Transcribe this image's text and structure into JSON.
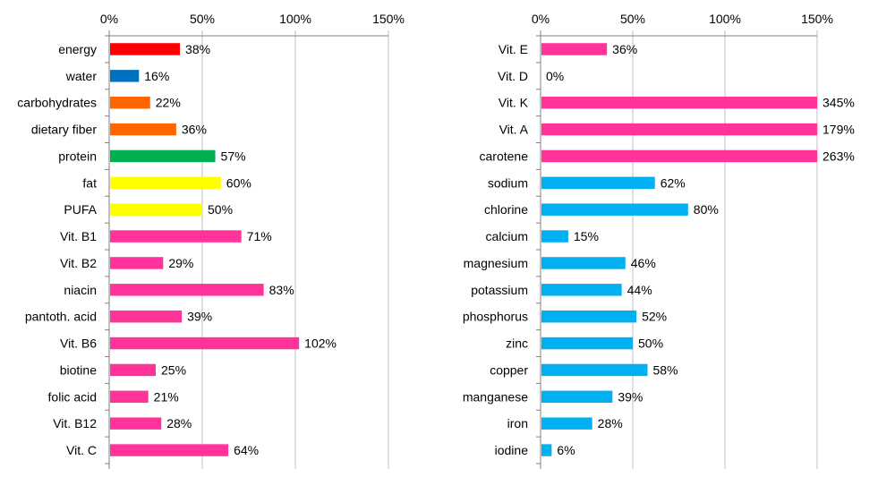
{
  "chart_data": [
    {
      "type": "bar",
      "orientation": "horizontal",
      "title": "",
      "xlabel": "",
      "ylabel": "",
      "xlim": [
        0,
        150
      ],
      "ticks": [
        "0%",
        "50%",
        "100%",
        "150%"
      ],
      "tick_values": [
        0,
        50,
        100,
        150
      ],
      "grid": true,
      "categories": [
        "energy",
        "water",
        "carbohydrates",
        "dietary fiber",
        "protein",
        "fat",
        "PUFA",
        "Vit. B1",
        "Vit. B2",
        "niacin",
        "pantoth. acid",
        "Vit. B6",
        "biotine",
        "folic acid",
        "Vit. B12",
        "Vit. C"
      ],
      "values": [
        38,
        16,
        22,
        36,
        57,
        60,
        50,
        71,
        29,
        83,
        39,
        102,
        25,
        21,
        28,
        64
      ],
      "value_labels": [
        "38%",
        "16%",
        "22%",
        "36%",
        "57%",
        "60%",
        "50%",
        "71%",
        "29%",
        "83%",
        "39%",
        "102%",
        "25%",
        "21%",
        "28%",
        "64%"
      ],
      "colors": [
        "#ff0000",
        "#0070c0",
        "#ff6600",
        "#ff6600",
        "#00b050",
        "#ffff00",
        "#ffff00",
        "#ff3399",
        "#ff3399",
        "#ff3399",
        "#ff3399",
        "#ff3399",
        "#ff3399",
        "#ff3399",
        "#ff3399",
        "#ff3399"
      ]
    },
    {
      "type": "bar",
      "orientation": "horizontal",
      "title": "",
      "xlabel": "",
      "ylabel": "",
      "xlim": [
        0,
        150
      ],
      "ticks": [
        "0%",
        "50%",
        "100%",
        "150%"
      ],
      "tick_values": [
        0,
        50,
        100,
        150
      ],
      "grid": true,
      "categories": [
        "Vit. E",
        "Vit. D",
        "Vit. K",
        "Vit. A",
        "carotene",
        "sodium",
        "chlorine",
        "calcium",
        "magnesium",
        "potassium",
        "phosphorus",
        "zinc",
        "copper",
        "manganese",
        "iron",
        "iodine"
      ],
      "values": [
        36,
        0,
        345,
        179,
        263,
        62,
        80,
        15,
        46,
        44,
        52,
        50,
        58,
        39,
        28,
        6
      ],
      "value_labels": [
        "36%",
        "0%",
        "345%",
        "179%",
        "263%",
        "62%",
        "80%",
        "15%",
        "46%",
        "44%",
        "52%",
        "50%",
        "58%",
        "39%",
        "28%",
        "6%"
      ],
      "colors": [
        "#ff3399",
        "#ff3399",
        "#ff3399",
        "#ff3399",
        "#ff3399",
        "#00b0f0",
        "#00b0f0",
        "#00b0f0",
        "#00b0f0",
        "#00b0f0",
        "#00b0f0",
        "#00b0f0",
        "#00b0f0",
        "#00b0f0",
        "#00b0f0",
        "#00b0f0"
      ]
    }
  ]
}
